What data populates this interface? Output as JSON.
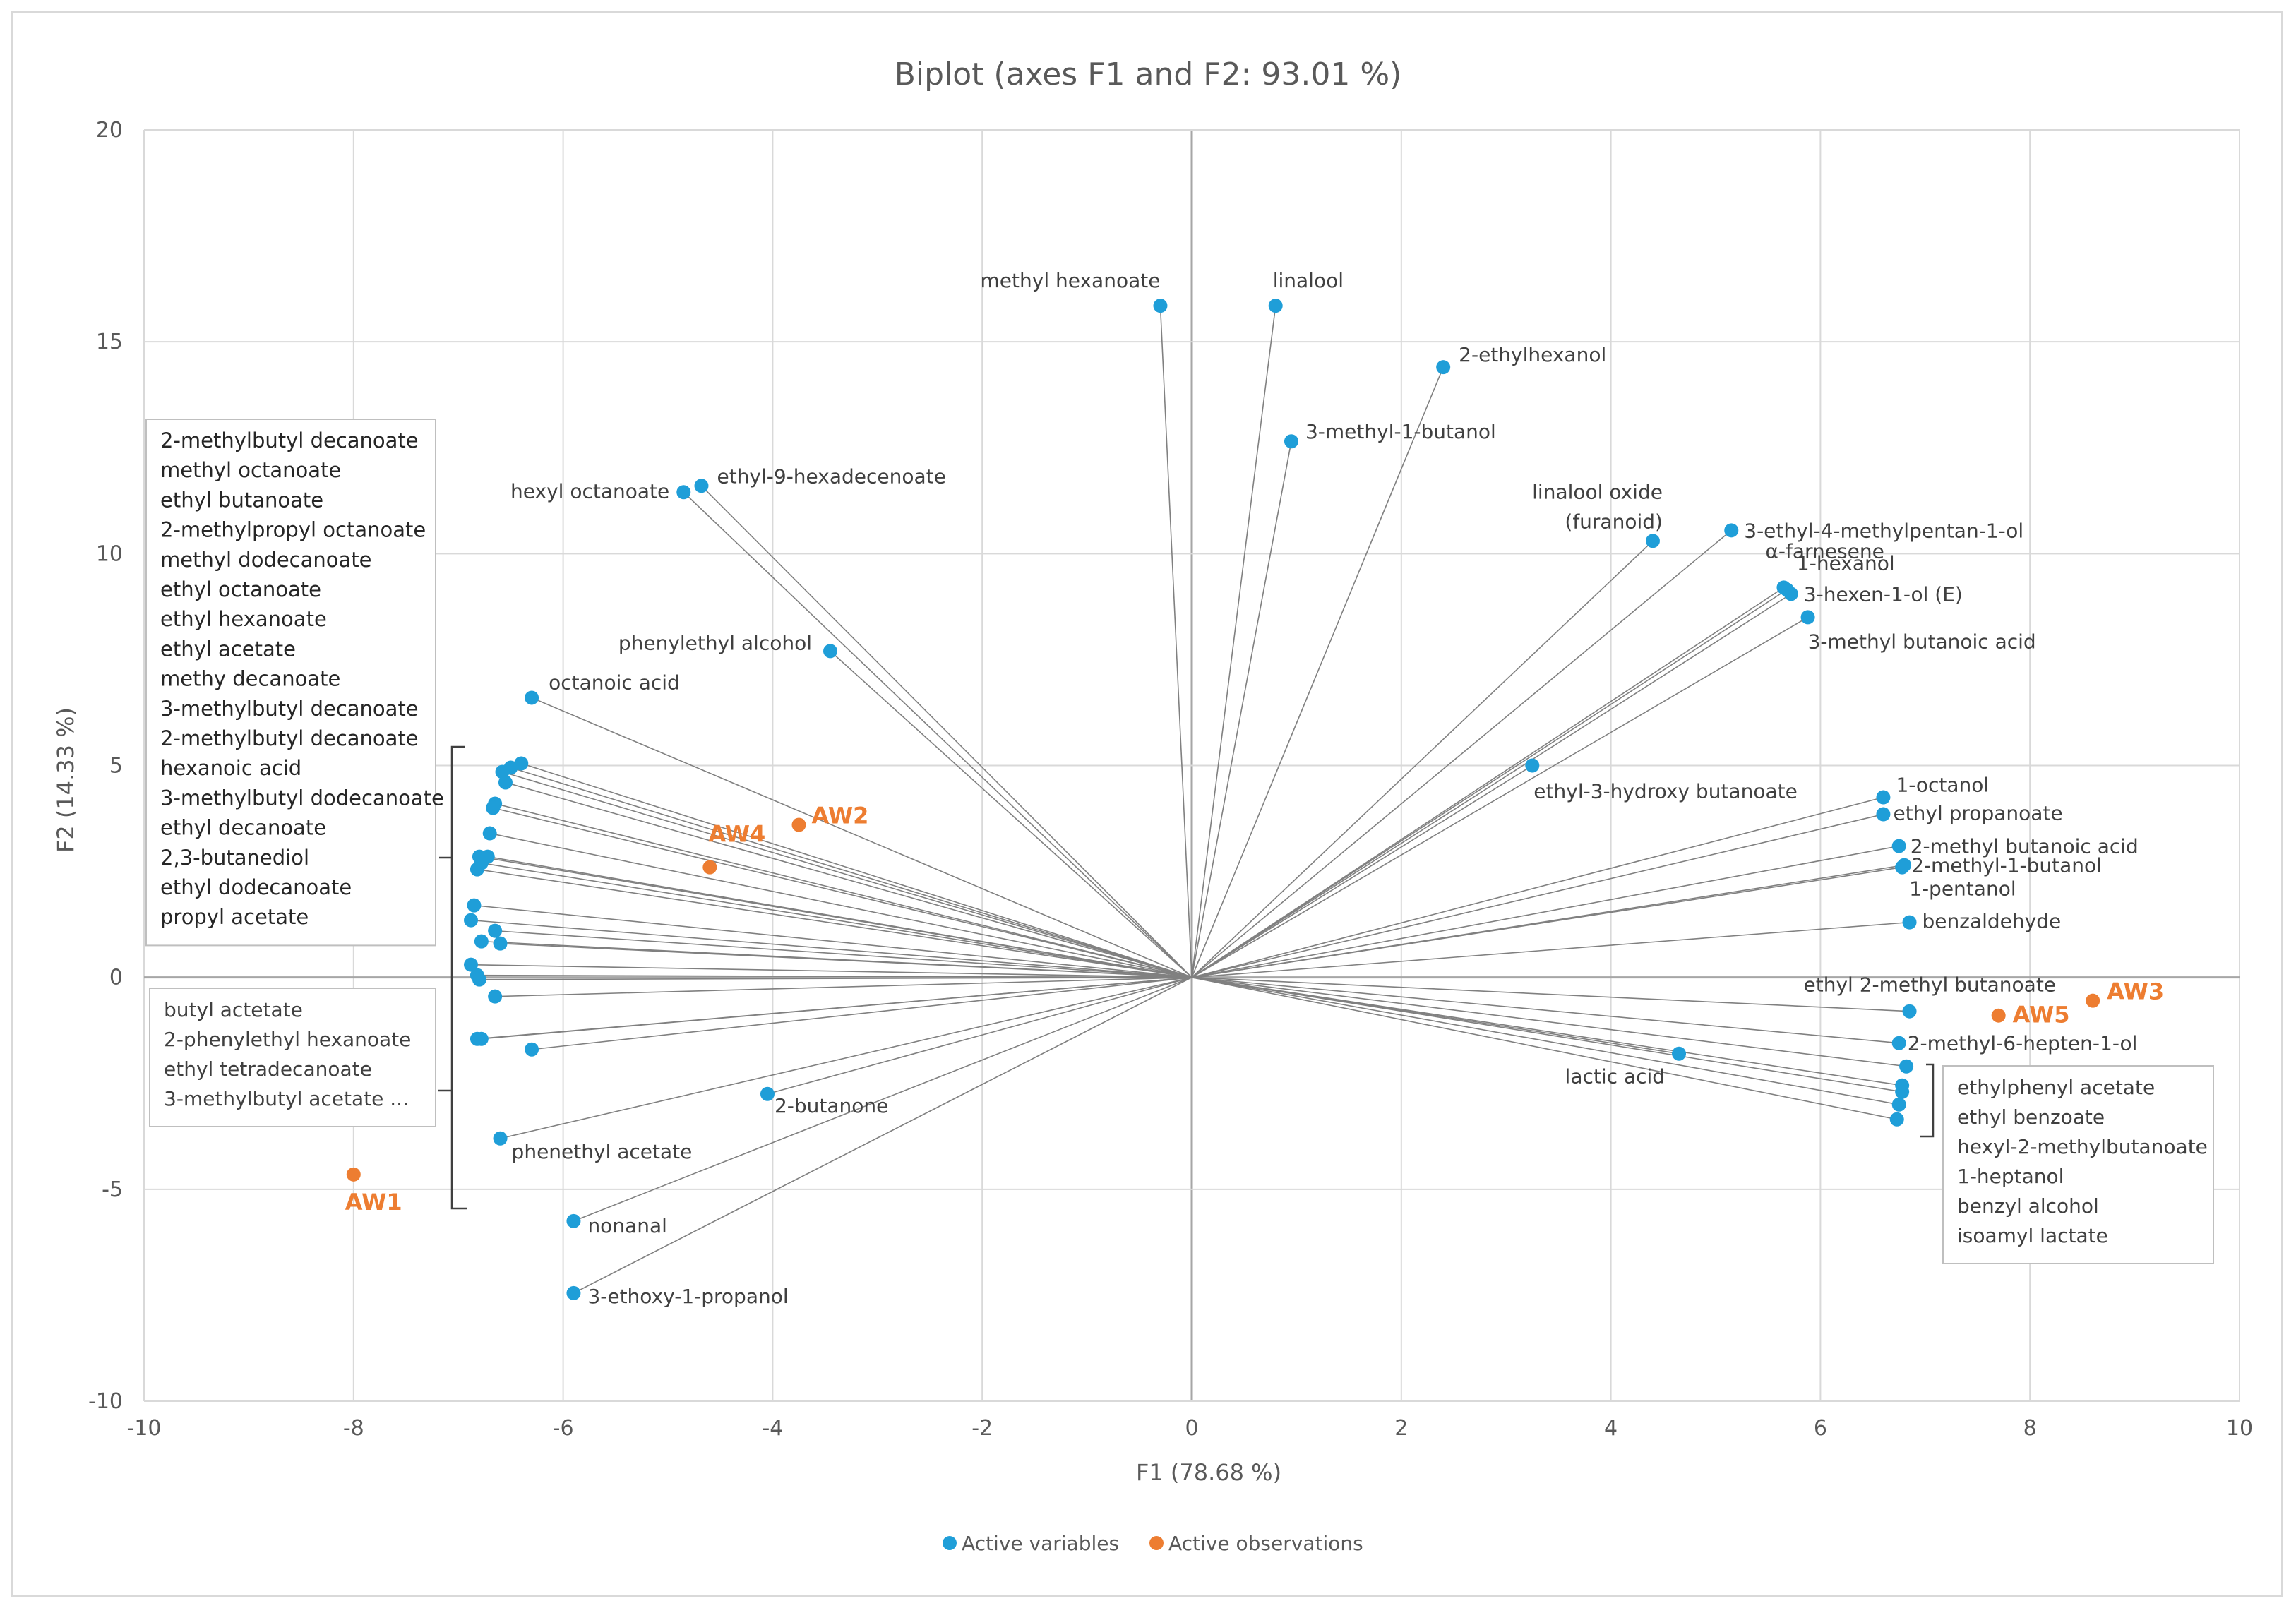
{
  "chart_data": {
    "type": "scatter",
    "title": "Biplot (axes F1 and F2: 93.01 %)",
    "xlabel": "F1 (78.68 %)",
    "ylabel": "F2 (14.33 %)",
    "xlim": [
      -10,
      10
    ],
    "ylim": [
      -10,
      20
    ],
    "xticks": [
      "-10",
      "-8",
      "-6",
      "-4",
      "-2",
      "0",
      "2",
      "4",
      "6",
      "8",
      "10"
    ],
    "yticks": [
      "-10",
      "-5",
      "0",
      "5",
      "10",
      "15",
      "20"
    ],
    "colors": {
      "variables": "#1F9ED8",
      "observations": "#ED7D31",
      "vectors": "#808080",
      "grid": "#d9d9d9"
    },
    "variables": [
      {
        "label": "methyl hexanoate",
        "x": -0.3,
        "y": 15.85
      },
      {
        "label": "linalool",
        "x": 0.8,
        "y": 15.85
      },
      {
        "label": "2-ethylhexanol",
        "x": 2.4,
        "y": 14.4
      },
      {
        "label": "3-methyl-1-butanol",
        "x": 0.95,
        "y": 12.65
      },
      {
        "label": "hexyl octanoate",
        "x": -4.85,
        "y": 11.45
      },
      {
        "label": "ethyl-9-hexadecenoate",
        "x": -4.68,
        "y": 11.6
      },
      {
        "label": "linalool oxide",
        "label2": "(furanoid)",
        "x": 4.4,
        "y": 10.3
      },
      {
        "label": "3-ethyl-4-methylpentan-1-ol",
        "x": 5.15,
        "y": 10.55
      },
      {
        "label": "α-farnesene",
        "x": 5.65,
        "y": 9.2
      },
      {
        "label": "1-hexanol",
        "x": 5.68,
        "y": 9.15
      },
      {
        "label": "3-hexen-1-ol (E)",
        "x": 5.72,
        "y": 9.05
      },
      {
        "label": "3-methyl butanoic acid",
        "x": 5.88,
        "y": 8.5
      },
      {
        "label": "phenylethyl alcohol",
        "x": -3.45,
        "y": 7.7
      },
      {
        "label": "octanoic acid",
        "x": -6.3,
        "y": 6.6
      },
      {
        "label": "ethyl-3-hydroxy butanoate",
        "x": 3.25,
        "y": 5.0
      },
      {
        "label": "1-octanol",
        "x": 6.6,
        "y": 4.25
      },
      {
        "label": "ethyl propanoate",
        "x": 6.6,
        "y": 3.85
      },
      {
        "label": "2-methyl butanoic acid",
        "x": 6.75,
        "y": 3.1
      },
      {
        "label": "2-methyl-1-butanol",
        "x": 6.8,
        "y": 2.65
      },
      {
        "label": "1-pentanol",
        "x": 6.78,
        "y": 2.6
      },
      {
        "label": "benzaldehyde",
        "x": 6.85,
        "y": 1.3
      },
      {
        "label": "ethyl 2-methyl butanoate",
        "x": 6.85,
        "y": -0.8
      },
      {
        "label": "2-methyl-6-hepten-1-ol",
        "x": 6.75,
        "y": -1.55
      },
      {
        "label": "lactic acid",
        "x": 4.65,
        "y": -1.8
      },
      {
        "label": "2-butanone",
        "x": -4.05,
        "y": -2.75
      },
      {
        "label": "phenethyl acetate",
        "x": -6.6,
        "y": -3.8
      },
      {
        "label": "nonanal",
        "x": -5.9,
        "y": -5.75
      },
      {
        "label": "3-ethoxy-1-propanol",
        "x": -5.9,
        "y": -7.45
      }
    ],
    "cluster_left_upper": [
      {
        "x": -6.4,
        "y": 5.05
      },
      {
        "x": -6.5,
        "y": 4.95
      },
      {
        "x": -6.58,
        "y": 4.85
      },
      {
        "x": -6.55,
        "y": 4.6
      },
      {
        "x": -6.65,
        "y": 4.1
      },
      {
        "x": -6.67,
        "y": 4.0
      },
      {
        "x": -6.7,
        "y": 3.4
      },
      {
        "x": -6.8,
        "y": 2.85
      },
      {
        "x": -6.72,
        "y": 2.85
      },
      {
        "x": -6.78,
        "y": 2.7
      },
      {
        "x": -6.82,
        "y": 2.55
      },
      {
        "x": -6.85,
        "y": 1.7
      },
      {
        "x": -6.88,
        "y": 1.35
      },
      {
        "x": -6.65,
        "y": 1.1
      },
      {
        "x": -6.78,
        "y": 0.85
      },
      {
        "x": -6.6,
        "y": 0.8
      },
      {
        "x": -6.88,
        "y": 0.3
      },
      {
        "x": -6.82,
        "y": 0.05
      }
    ],
    "cluster_left_lower": [
      {
        "x": -6.8,
        "y": -0.05
      },
      {
        "x": -6.65,
        "y": -0.45
      },
      {
        "x": -6.82,
        "y": -1.45
      },
      {
        "x": -6.78,
        "y": -1.45
      },
      {
        "x": -6.3,
        "y": -1.7
      }
    ],
    "cluster_right_lower": [
      {
        "x": 6.82,
        "y": -2.1
      },
      {
        "x": 6.78,
        "y": -2.55
      },
      {
        "x": 6.78,
        "y": -2.7
      },
      {
        "x": 6.75,
        "y": -3.0
      },
      {
        "x": 6.73,
        "y": -3.35
      }
    ],
    "observations": [
      {
        "label": "AW1",
        "x": -8.0,
        "y": -4.65
      },
      {
        "label": "AW2",
        "x": -3.75,
        "y": 3.6
      },
      {
        "label": "AW3",
        "x": 8.6,
        "y": -0.55
      },
      {
        "label": "AW4",
        "x": -4.6,
        "y": 2.6
      },
      {
        "label": "AW5",
        "x": 7.7,
        "y": -0.9
      }
    ],
    "annotation_box_upper_left": [
      "2-methylbutyl decanoate",
      "methyl octanoate",
      "ethyl butanoate",
      "2-methylpropyl octanoate",
      "methyl dodecanoate",
      "ethyl octanoate",
      "ethyl hexanoate",
      "ethyl acetate",
      "methy decanoate",
      "3-methylbutyl decanoate",
      "2-methylbutyl decanoate",
      "hexanoic acid",
      "3-methylbutyl dodecanoate",
      "ethyl decanoate",
      "2,3-butanediol",
      "ethyl dodecanoate",
      "propyl acetate"
    ],
    "annotation_box_lower_left": [
      "butyl actetate",
      "2-phenylethyl hexanoate",
      "ethyl tetradecanoate",
      "3-methylbutyl acetate ..."
    ],
    "annotation_box_lower_right": [
      "ethylphenyl acetate",
      "ethyl benzoate",
      "hexyl-2-methylbutanoate",
      "1-heptanol",
      "benzyl alcohol",
      "isoamyl lactate"
    ],
    "legend": [
      "Active variables",
      "Active observations"
    ]
  }
}
